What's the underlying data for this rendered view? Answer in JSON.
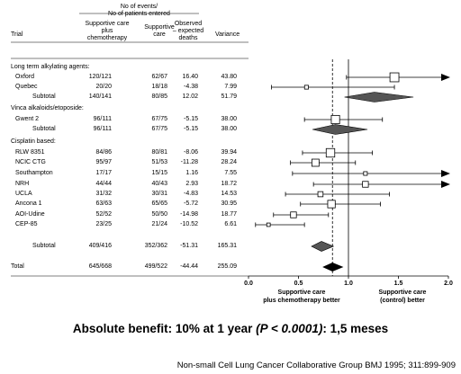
{
  "header": {
    "events_line1": "No of events/",
    "events_line2": "No of patients entered",
    "col_trial": "Trial",
    "col_sc_chemo": [
      "Supportive care",
      "plus",
      "chemotherapy"
    ],
    "col_sc": [
      "Supportive",
      "care"
    ],
    "col_oe": [
      "Observed",
      "– expected",
      "deaths"
    ],
    "col_var": "Variance"
  },
  "groups": [
    {
      "name": "Long term alkylating agents:",
      "trials": [
        {
          "name": "Oxford",
          "chemo": "120/121",
          "sc": "62/67",
          "oe": "16.40",
          "var": "43.80"
        },
        {
          "name": "Quebec",
          "chemo": "20/20",
          "sc": "18/18",
          "oe": "-4.38",
          "var": "7.99"
        }
      ],
      "subtotal": {
        "label": "Subtotal",
        "chemo": "140/141",
        "sc": "80/85",
        "oe": "12.02",
        "var": "51.79"
      }
    },
    {
      "name": "Vinca alkaloids/etoposide:",
      "trials": [
        {
          "name": "Gwent 2",
          "chemo": "96/111",
          "sc": "67/75",
          "oe": "-5.15",
          "var": "38.00"
        }
      ],
      "subtotal": {
        "label": "Subtotal",
        "chemo": "96/111",
        "sc": "67/75",
        "oe": "-5.15",
        "var": "38.00"
      }
    },
    {
      "name": "Cisplatin based:",
      "trials": [
        {
          "name": "RLW 8351",
          "chemo": "84/86",
          "sc": "80/81",
          "oe": "-8.06",
          "var": "39.94"
        },
        {
          "name": "NCIC CTG",
          "chemo": "95/97",
          "sc": "51/53",
          "oe": "-11.28",
          "var": "28.24"
        },
        {
          "name": "Southampton",
          "chemo": "17/17",
          "sc": "15/15",
          "oe": "1.16",
          "var": "7.55"
        },
        {
          "name": "NRH",
          "chemo": "44/44",
          "sc": "40/43",
          "oe": "2.93",
          "var": "18.72"
        },
        {
          "name": "UCLA",
          "chemo": "31/32",
          "sc": "30/31",
          "oe": "-4.83",
          "var": "14.53"
        },
        {
          "name": "Ancona 1",
          "chemo": "63/63",
          "sc": "65/65",
          "oe": "-5.72",
          "var": "30.95"
        },
        {
          "name": "AOI-Udine",
          "chemo": "52/52",
          "sc": "50/50",
          "oe": "-14.98",
          "var": "18.77"
        },
        {
          "name": "CEP-85",
          "chemo": "23/25",
          "sc": "21/24",
          "oe": "-10.52",
          "var": "6.61"
        }
      ],
      "subtotal": {
        "label": "Subtotal",
        "chemo": "409/416",
        "sc": "352/362",
        "oe": "-51.31",
        "var": "165.31"
      }
    }
  ],
  "total": {
    "label": "Total",
    "chemo": "645/668",
    "sc": "499/522",
    "oe": "-44.44",
    "var": "255.09"
  },
  "axis_labels": {
    "left": [
      "Supportive care",
      "plus chemotherapy better"
    ],
    "right": [
      "Supportive care",
      "(control) better"
    ]
  },
  "chart_data": {
    "type": "forest",
    "measure": "hazard ratio",
    "xlim": [
      0.0,
      2.0
    ],
    "xticks": [
      "0.0",
      "0.5",
      "1.0",
      "1.5",
      "2.0"
    ],
    "reference_line": 1.0,
    "pooled_dashed_line": 0.84,
    "trials": [
      {
        "name": "Oxford",
        "est": 1.46,
        "lo": 0.98,
        "hi": 2.0,
        "arrow": true
      },
      {
        "name": "Quebec",
        "est": 0.58,
        "lo": 0.23,
        "hi": 1.46
      },
      {
        "name": "Gwent 2",
        "est": 0.87,
        "lo": 0.56,
        "hi": 1.34
      },
      {
        "name": "RLW 8351",
        "est": 0.82,
        "lo": 0.54,
        "hi": 1.24
      },
      {
        "name": "NCIC CTG",
        "est": 0.67,
        "lo": 0.42,
        "hi": 1.07
      },
      {
        "name": "Southampton",
        "est": 1.17,
        "lo": 0.44,
        "hi": 2.0,
        "arrow": true
      },
      {
        "name": "NRH",
        "est": 1.17,
        "lo": 0.65,
        "hi": 2.0,
        "arrow": true
      },
      {
        "name": "UCLA",
        "est": 0.72,
        "lo": 0.37,
        "hi": 1.41
      },
      {
        "name": "Ancona 1",
        "est": 0.83,
        "lo": 0.52,
        "hi": 1.32
      },
      {
        "name": "AOI-Udine",
        "est": 0.45,
        "lo": 0.25,
        "hi": 0.8
      },
      {
        "name": "CEP-85",
        "est": 0.2,
        "lo": 0.07,
        "hi": 0.56
      }
    ],
    "subtotals": [
      {
        "name": "Long term alkylating agents",
        "est": 1.26,
        "lo": 0.96,
        "hi": 1.65
      },
      {
        "name": "Vinca alkaloids/etoposide",
        "est": 0.87,
        "lo": 0.64,
        "hi": 1.19
      },
      {
        "name": "Cisplatin based",
        "est": 0.73,
        "lo": 0.63,
        "hi": 0.85
      }
    ],
    "total": {
      "est": 0.84,
      "lo": 0.74,
      "hi": 0.95
    }
  },
  "conclusion_main": "Absolute benefit: 10% at 1 year ",
  "conclusion_p": "(P < 0.0001)",
  "conclusion_tail": ": 1,5 meses",
  "citation": "Non-small Cell Lung Cancer Collaborative Group BMJ 1995; 311:899-909"
}
